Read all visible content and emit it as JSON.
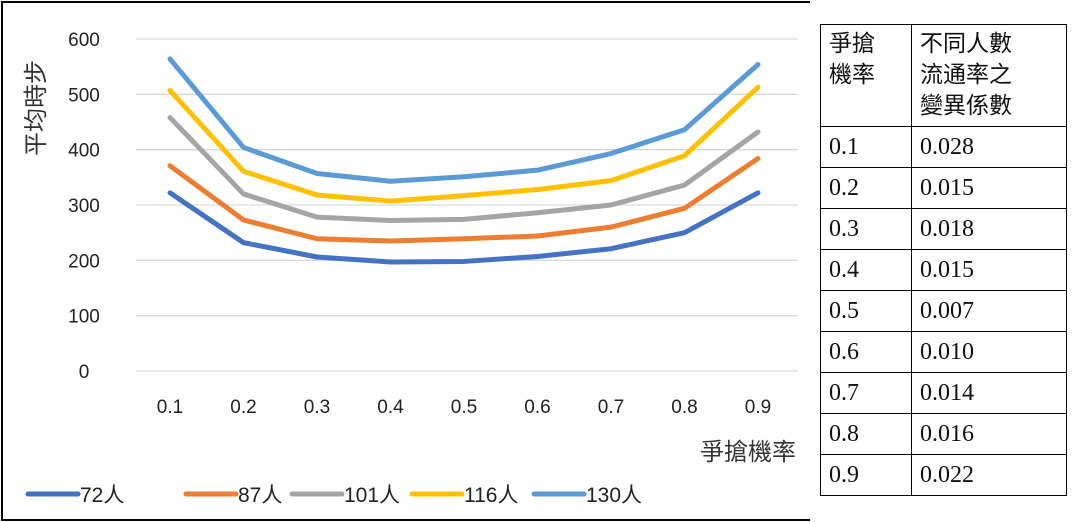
{
  "chart_data": {
    "type": "line",
    "title": "",
    "xlabel": "爭搶機率",
    "ylabel": "平均時步",
    "ylim": [
      0,
      600
    ],
    "yticks": [
      0,
      100,
      200,
      300,
      400,
      500,
      600
    ],
    "categories": [
      "0.1",
      "0.2",
      "0.3",
      "0.4",
      "0.5",
      "0.6",
      "0.7",
      "0.8",
      "0.9"
    ],
    "grid": true,
    "legend_position": "bottom",
    "series": [
      {
        "name": "72人",
        "color": "#4472C4",
        "values": [
          322,
          232,
          206,
          197,
          198,
          207,
          221,
          250,
          322
        ]
      },
      {
        "name": "87人",
        "color": "#ED7D31",
        "values": [
          371,
          273,
          239,
          235,
          239,
          244,
          260,
          294,
          384
        ]
      },
      {
        "name": "101人",
        "color": "#A5A5A5",
        "values": [
          458,
          320,
          278,
          272,
          274,
          286,
          300,
          336,
          432
        ]
      },
      {
        "name": "116人",
        "color": "#FFC000",
        "values": [
          507,
          361,
          318,
          307,
          317,
          328,
          344,
          389,
          513
        ]
      },
      {
        "name": "130人",
        "color": "#5B9BD5",
        "values": [
          564,
          404,
          357,
          343,
          351,
          363,
          393,
          436,
          554
        ]
      }
    ]
  },
  "table": {
    "header": {
      "col1_lines": [
        "爭搶",
        "機率"
      ],
      "col2_lines": [
        "不同人數",
        "流通率之",
        "變異係數"
      ]
    },
    "rows": [
      {
        "p": "0.1",
        "cv": "0.028"
      },
      {
        "p": "0.2",
        "cv": "0.015"
      },
      {
        "p": "0.3",
        "cv": "0.018"
      },
      {
        "p": "0.4",
        "cv": "0.015"
      },
      {
        "p": "0.5",
        "cv": "0.007"
      },
      {
        "p": "0.6",
        "cv": "0.010"
      },
      {
        "p": "0.7",
        "cv": "0.014"
      },
      {
        "p": "0.8",
        "cv": "0.016"
      },
      {
        "p": "0.9",
        "cv": "0.022"
      }
    ]
  }
}
